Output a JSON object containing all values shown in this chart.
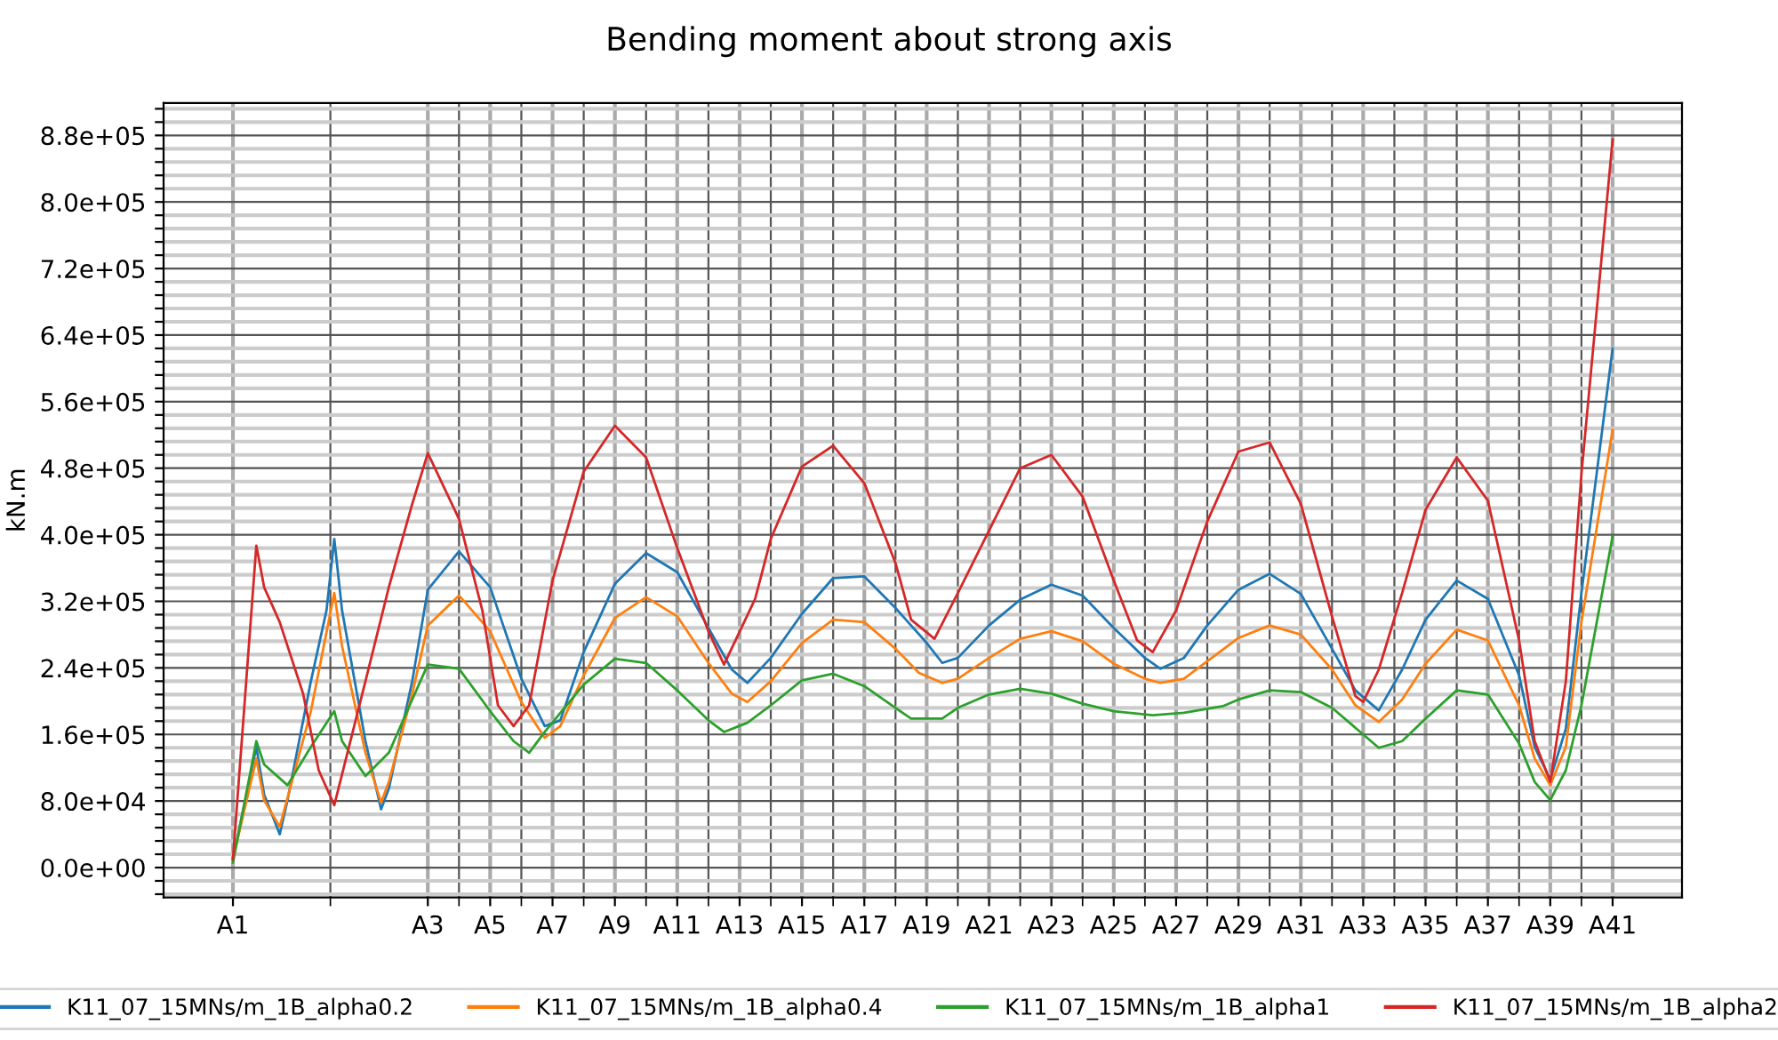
{
  "chart_data": {
    "type": "line",
    "title": "Bending moment about strong axis",
    "ylabel": "kN.m",
    "legend": "bottom",
    "grid": true,
    "marker": "none",
    "line_style": "solid",
    "ylim": [
      -36000,
      919000
    ],
    "categories": [
      "A1",
      null,
      null,
      null,
      null,
      null,
      null,
      null,
      null,
      null,
      null,
      null,
      null,
      null,
      null,
      null,
      null,
      null,
      null,
      null,
      null,
      null,
      null,
      null,
      null,
      "A3",
      null,
      null,
      null,
      null,
      null,
      null,
      null,
      "A5",
      null,
      null,
      null,
      null,
      null,
      null,
      null,
      "A7",
      null,
      null,
      null,
      null,
      null,
      null,
      null,
      "A9",
      null,
      null,
      null,
      null,
      null,
      null,
      null,
      "A11",
      null,
      null,
      null,
      null,
      null,
      null,
      null,
      "A13",
      null,
      null,
      null,
      null,
      null,
      null,
      null,
      "A15",
      null,
      null,
      null,
      null,
      null,
      null,
      null,
      "A17",
      null,
      null,
      null,
      null,
      null,
      null,
      null,
      "A19",
      null,
      null,
      null,
      null,
      null,
      null,
      null,
      "A21",
      null,
      null,
      null,
      null,
      null,
      null,
      null,
      "A23",
      null,
      null,
      null,
      null,
      null,
      null,
      null,
      "A25",
      null,
      null,
      null,
      null,
      null,
      null,
      null,
      "A27",
      null,
      null,
      null,
      null,
      null,
      null,
      null,
      "A29",
      null,
      null,
      null,
      null,
      null,
      null,
      null,
      "A31",
      null,
      null,
      null,
      null,
      null,
      null,
      null,
      "A33",
      null,
      null,
      null,
      null,
      null,
      null,
      null,
      "A35",
      null,
      null,
      null,
      null,
      null,
      null,
      null,
      "A37",
      null,
      null,
      null,
      null,
      null,
      null,
      null,
      "A39",
      null,
      null,
      null,
      null,
      null,
      null,
      null,
      "A41"
    ],
    "yticks": [
      {
        "value": -32000,
        "label": null
      },
      {
        "value": -16000,
        "label": null
      },
      {
        "value": 0,
        "label": "0.0e+00"
      },
      {
        "value": 16000,
        "label": null
      },
      {
        "value": 32000,
        "label": null
      },
      {
        "value": 48000,
        "label": null
      },
      {
        "value": 64000,
        "label": null
      },
      {
        "value": 80000,
        "label": "8.0e+04"
      },
      {
        "value": 96000,
        "label": null
      },
      {
        "value": 112000,
        "label": null
      },
      {
        "value": 128000,
        "label": null
      },
      {
        "value": 144000,
        "label": null
      },
      {
        "value": 160000,
        "label": "1.6e+05"
      },
      {
        "value": 176000,
        "label": null
      },
      {
        "value": 192000,
        "label": null
      },
      {
        "value": 208000,
        "label": null
      },
      {
        "value": 224000,
        "label": null
      },
      {
        "value": 240000,
        "label": "2.4e+05"
      },
      {
        "value": 256000,
        "label": null
      },
      {
        "value": 272000,
        "label": null
      },
      {
        "value": 288000,
        "label": null
      },
      {
        "value": 304000,
        "label": null
      },
      {
        "value": 320000,
        "label": "3.2e+05"
      },
      {
        "value": 336000,
        "label": null
      },
      {
        "value": 352000,
        "label": null
      },
      {
        "value": 368000,
        "label": null
      },
      {
        "value": 384000,
        "label": null
      },
      {
        "value": 400000,
        "label": "4.0e+05"
      },
      {
        "value": 416000,
        "label": null
      },
      {
        "value": 432000,
        "label": null
      },
      {
        "value": 448000,
        "label": null
      },
      {
        "value": 464000,
        "label": null
      },
      {
        "value": 480000,
        "label": "4.8e+05"
      },
      {
        "value": 496000,
        "label": null
      },
      {
        "value": 512000,
        "label": null
      },
      {
        "value": 528000,
        "label": null
      },
      {
        "value": 544000,
        "label": null
      },
      {
        "value": 560000,
        "label": "5.6e+05"
      },
      {
        "value": 576000,
        "label": null
      },
      {
        "value": 592000,
        "label": null
      },
      {
        "value": 608000,
        "label": null
      },
      {
        "value": 624000,
        "label": null
      },
      {
        "value": 640000,
        "label": "6.4e+05"
      },
      {
        "value": 656000,
        "label": null
      },
      {
        "value": 672000,
        "label": null
      },
      {
        "value": 688000,
        "label": null
      },
      {
        "value": 704000,
        "label": null
      },
      {
        "value": 720000,
        "label": "7.2e+05"
      },
      {
        "value": 736000,
        "label": null
      },
      {
        "value": 752000,
        "label": null
      },
      {
        "value": 768000,
        "label": null
      },
      {
        "value": 784000,
        "label": null
      },
      {
        "value": 800000,
        "label": "8.0e+05"
      },
      {
        "value": 816000,
        "label": null
      },
      {
        "value": 832000,
        "label": null
      },
      {
        "value": 848000,
        "label": null
      },
      {
        "value": 864000,
        "label": null
      },
      {
        "value": 880000,
        "label": "8.8e+05"
      },
      {
        "value": 896000,
        "label": null
      },
      {
        "value": 912000,
        "label": null
      }
    ],
    "series": [
      {
        "name": "K11_07_15MNs/m_1B_alpha0.2",
        "color": "#1f77b4",
        "values": [
          10000,
          null,
          null,
          145000,
          88000,
          null,
          40000,
          81000,
          null,
          null,
          224000,
          null,
          309000,
          395000,
          309000,
          null,
          null,
          152000,
          null,
          70000,
          95000,
          null,
          null,
          224000,
          null,
          334000,
          null,
          null,
          null,
          380000,
          null,
          null,
          null,
          337000,
          null,
          null,
          null,
          227000,
          null,
          null,
          170000,
          null,
          177000,
          null,
          null,
          259000,
          null,
          null,
          null,
          341000,
          null,
          null,
          null,
          378000,
          null,
          null,
          null,
          355000,
          null,
          null,
          null,
          288000,
          null,
          null,
          238000,
          null,
          222000,
          null,
          null,
          252000,
          null,
          null,
          null,
          305000,
          null,
          null,
          null,
          348000,
          null,
          null,
          null,
          350000,
          null,
          null,
          null,
          312000,
          null,
          null,
          null,
          270000,
          null,
          246000,
          null,
          252000,
          null,
          null,
          null,
          291000,
          null,
          null,
          null,
          322000,
          null,
          null,
          null,
          340000,
          null,
          null,
          null,
          327000,
          null,
          null,
          null,
          288000,
          null,
          null,
          null,
          252000,
          null,
          239000,
          null,
          null,
          252000,
          null,
          null,
          291000,
          null,
          null,
          null,
          334000,
          null,
          null,
          null,
          353000,
          null,
          null,
          null,
          329000,
          null,
          null,
          null,
          263000,
          null,
          null,
          213000,
          null,
          null,
          189000,
          null,
          null,
          238000,
          null,
          null,
          298000,
          null,
          null,
          null,
          345000,
          null,
          null,
          null,
          323000,
          null,
          null,
          null,
          231000,
          null,
          145000,
          null,
          106000,
          null,
          167000,
          null,
          330000,
          null,
          null,
          null,
          624000
        ]
      },
      {
        "name": "K11_07_15MNs/m_1B_alpha0.4",
        "color": "#ff7f0e",
        "values": [
          10000,
          null,
          null,
          131000,
          81000,
          null,
          49000,
          null,
          null,
          null,
          188000,
          null,
          null,
          330000,
          266000,
          null,
          null,
          138000,
          null,
          78000,
          103000,
          null,
          null,
          209000,
          null,
          291000,
          null,
          null,
          null,
          327000,
          null,
          null,
          null,
          284000,
          null,
          null,
          null,
          199000,
          null,
          null,
          156000,
          null,
          170000,
          null,
          null,
          231000,
          null,
          null,
          null,
          300000,
          null,
          null,
          null,
          325000,
          null,
          null,
          null,
          302000,
          null,
          null,
          null,
          246000,
          null,
          null,
          209000,
          null,
          199000,
          null,
          null,
          224000,
          null,
          null,
          null,
          270000,
          null,
          null,
          null,
          298000,
          null,
          null,
          null,
          295000,
          null,
          null,
          null,
          263000,
          null,
          null,
          234000,
          null,
          null,
          222000,
          null,
          227000,
          null,
          null,
          null,
          252000,
          null,
          null,
          null,
          275000,
          null,
          null,
          null,
          284000,
          null,
          null,
          null,
          272000,
          null,
          null,
          null,
          245000,
          null,
          null,
          null,
          227000,
          null,
          222000,
          null,
          null,
          227000,
          null,
          null,
          248000,
          null,
          null,
          null,
          276000,
          null,
          null,
          null,
          291000,
          null,
          null,
          null,
          280000,
          null,
          null,
          null,
          238000,
          null,
          null,
          195000,
          null,
          null,
          175000,
          null,
          null,
          202000,
          null,
          null,
          245000,
          null,
          null,
          null,
          286000,
          null,
          null,
          null,
          273000,
          null,
          null,
          null,
          195000,
          null,
          131000,
          null,
          99000,
          null,
          145000,
          null,
          295000,
          null,
          null,
          null,
          526000
        ]
      },
      {
        "name": "K11_07_15MNs/m_1B_alpha1",
        "color": "#2ca02c",
        "values": [
          6000,
          null,
          null,
          152000,
          124000,
          null,
          null,
          99000,
          null,
          null,
          145000,
          null,
          null,
          188000,
          152000,
          null,
          null,
          110000,
          null,
          null,
          138000,
          null,
          null,
          202000,
          null,
          244000,
          null,
          null,
          null,
          239000,
          null,
          null,
          null,
          188000,
          null,
          null,
          152000,
          null,
          138000,
          null,
          163000,
          null,
          null,
          null,
          null,
          220000,
          null,
          null,
          null,
          251000,
          null,
          null,
          null,
          246000,
          null,
          null,
          null,
          213000,
          null,
          null,
          null,
          177000,
          null,
          163000,
          null,
          null,
          174000,
          null,
          null,
          195000,
          null,
          null,
          null,
          225000,
          null,
          null,
          null,
          233000,
          null,
          null,
          null,
          218000,
          null,
          null,
          null,
          192000,
          null,
          179000,
          null,
          null,
          null,
          179000,
          null,
          192000,
          null,
          null,
          null,
          208000,
          null,
          null,
          null,
          215000,
          null,
          null,
          null,
          209000,
          null,
          null,
          null,
          197000,
          null,
          null,
          null,
          188000,
          null,
          null,
          null,
          null,
          183000,
          null,
          null,
          null,
          186000,
          null,
          null,
          null,
          null,
          194000,
          null,
          202000,
          null,
          null,
          null,
          213000,
          null,
          null,
          null,
          211000,
          null,
          null,
          null,
          192000,
          null,
          null,
          null,
          160000,
          null,
          144000,
          null,
          null,
          152000,
          null,
          null,
          179000,
          null,
          null,
          null,
          213000,
          null,
          null,
          null,
          208000,
          null,
          null,
          null,
          149000,
          null,
          103000,
          null,
          81000,
          null,
          117000,
          null,
          195000,
          null,
          null,
          null,
          398000
        ]
      },
      {
        "name": "K11_07_15MNs/m_1B_alpha2",
        "color": "#d62728",
        "values": [
          10000,
          null,
          null,
          387000,
          337000,
          null,
          295000,
          null,
          null,
          209000,
          null,
          117000,
          null,
          75000,
          null,
          null,
          null,
          224000,
          null,
          null,
          337000,
          null,
          null,
          437000,
          null,
          498000,
          null,
          null,
          null,
          419000,
          null,
          null,
          309000,
          null,
          195000,
          null,
          170000,
          null,
          195000,
          null,
          null,
          345000,
          null,
          null,
          null,
          476000,
          null,
          null,
          null,
          531000,
          null,
          null,
          null,
          493000,
          null,
          null,
          null,
          384000,
          null,
          null,
          null,
          284000,
          null,
          244000,
          null,
          null,
          null,
          323000,
          null,
          395000,
          null,
          null,
          null,
          482000,
          null,
          null,
          null,
          507000,
          null,
          null,
          null,
          462000,
          null,
          null,
          null,
          366000,
          null,
          298000,
          null,
          null,
          275000,
          null,
          null,
          330000,
          null,
          null,
          null,
          405000,
          null,
          null,
          null,
          480000,
          null,
          null,
          null,
          496000,
          null,
          null,
          null,
          446000,
          null,
          null,
          null,
          345000,
          null,
          null,
          273000,
          null,
          259000,
          null,
          null,
          309000,
          null,
          null,
          null,
          416000,
          null,
          null,
          null,
          500000,
          null,
          null,
          null,
          511000,
          null,
          null,
          null,
          437000,
          null,
          null,
          null,
          302000,
          null,
          null,
          206000,
          199000,
          null,
          238000,
          null,
          null,
          330000,
          null,
          null,
          430000,
          null,
          null,
          null,
          493000,
          null,
          null,
          null,
          441000,
          null,
          null,
          null,
          273000,
          null,
          152000,
          null,
          103000,
          null,
          224000,
          null,
          473000,
          null,
          null,
          null,
          875000
        ]
      }
    ]
  }
}
